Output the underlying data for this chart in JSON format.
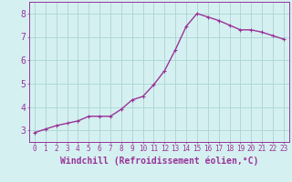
{
  "x": [
    0,
    1,
    2,
    3,
    4,
    5,
    6,
    7,
    8,
    9,
    10,
    11,
    12,
    13,
    14,
    15,
    16,
    17,
    18,
    19,
    20,
    21,
    22,
    23
  ],
  "y": [
    2.9,
    3.05,
    3.2,
    3.3,
    3.4,
    3.6,
    3.6,
    3.6,
    3.9,
    4.3,
    4.45,
    4.95,
    5.55,
    6.45,
    7.45,
    8.0,
    7.85,
    7.7,
    7.5,
    7.3,
    7.3,
    7.2,
    7.05,
    6.9
  ],
  "line_color": "#993399",
  "marker": "P",
  "marker_size": 2.5,
  "linewidth": 1.0,
  "xlabel": "Windchill (Refroidissement éolien,°C)",
  "xlabel_color": "#993399",
  "bg_color": "#d5f0f0",
  "grid_color": "#aad4d4",
  "tick_color": "#993399",
  "spine_color": "#993399",
  "ylim": [
    2.5,
    8.5
  ],
  "xlim": [
    -0.5,
    23.5
  ],
  "yticks": [
    3,
    4,
    5,
    6,
    7,
    8
  ],
  "xticks": [
    0,
    1,
    2,
    3,
    4,
    5,
    6,
    7,
    8,
    9,
    10,
    11,
    12,
    13,
    14,
    15,
    16,
    17,
    18,
    19,
    20,
    21,
    22,
    23
  ],
  "tick_fontsize": 5.5,
  "xlabel_fontsize": 7.0,
  "ytick_fontsize": 7.0
}
